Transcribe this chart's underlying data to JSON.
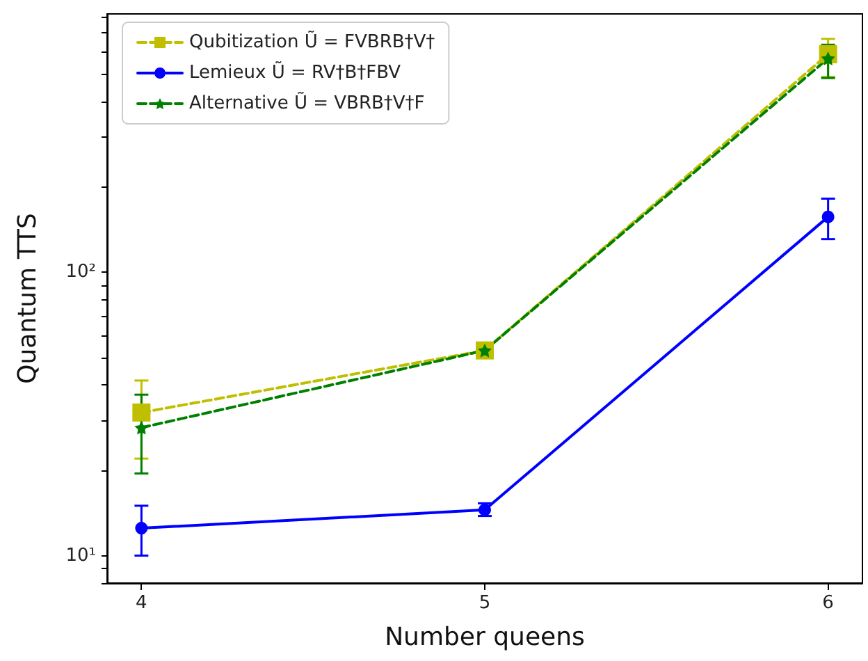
{
  "chart_data": {
    "type": "line",
    "xlabel": "Number queens",
    "ylabel": "Quantum TTS",
    "x": [
      4,
      5,
      6
    ],
    "xlim": [
      3.9,
      6.1
    ],
    "xticks": [
      4,
      5,
      6
    ],
    "ylim": [
      8,
      817
    ],
    "log": true,
    "yticks": [
      {
        "value": 8,
        "label": null
      },
      {
        "value": 9,
        "label": null
      },
      {
        "value": 10,
        "label": "10¹"
      },
      {
        "value": 20,
        "label": null
      },
      {
        "value": 30,
        "label": null
      },
      {
        "value": 40,
        "label": null
      },
      {
        "value": 50,
        "label": null
      },
      {
        "value": 60,
        "label": null
      },
      {
        "value": 70,
        "label": null
      },
      {
        "value": 80,
        "label": null
      },
      {
        "value": 90,
        "label": null
      },
      {
        "value": 100,
        "label": "10²"
      },
      {
        "value": 200,
        "label": null
      },
      {
        "value": 300,
        "label": null
      },
      {
        "value": 400,
        "label": null
      },
      {
        "value": 500,
        "label": null
      },
      {
        "value": 600,
        "label": null
      },
      {
        "value": 700,
        "label": null
      },
      {
        "value": 800,
        "label": null
      }
    ],
    "grid": false,
    "legend": "top left",
    "series": [
      {
        "name": "Qubitization Ũ = FVBRB†V†",
        "color": "#bfbf00",
        "values": [
          32,
          53,
          589
        ],
        "errors": [
          [
            22,
            41.5
          ],
          [
            51,
            56
          ],
          [
            490,
            667
          ]
        ],
        "marker": "square",
        "line_style": "dashed"
      },
      {
        "name": "Lemieux Ũ = RV†B†FBV",
        "color": "#0000ff",
        "values": [
          12.5,
          14.5,
          157
        ],
        "errors": [
          [
            10,
            15
          ],
          [
            13.8,
            15.3
          ],
          [
            131,
            182
          ]
        ],
        "marker": "circle",
        "line_style": "solid"
      },
      {
        "name": "Alternative Ũ = VBRB†V†F",
        "color": "#008000",
        "values": [
          28.3,
          53,
          569
        ],
        "errors": [
          [
            19.5,
            37
          ],
          [
            51,
            55
          ],
          [
            485,
            636
          ]
        ],
        "marker": "star",
        "line_style": "dashed"
      }
    ]
  }
}
